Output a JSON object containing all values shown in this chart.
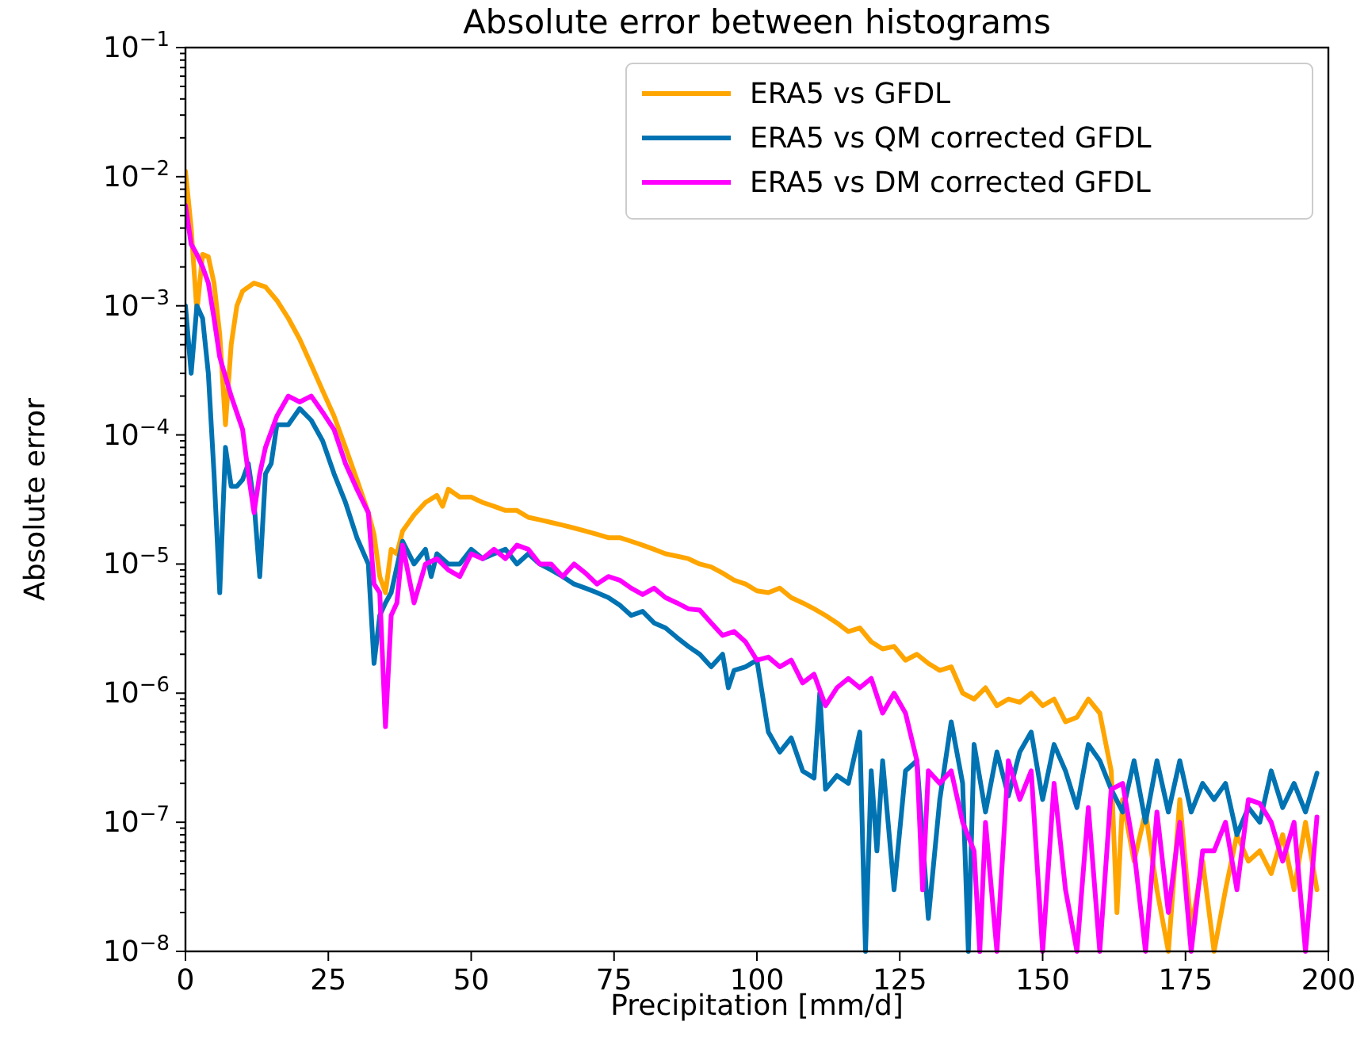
{
  "chart_data": {
    "type": "line",
    "title": "Absolute error between histograms",
    "xlabel": "Precipitation [mm/d]",
    "ylabel": "Absolute error",
    "log": "y",
    "legend": "top right",
    "grid": false,
    "line_style": "solid",
    "marker": "none",
    "xlim": [
      0,
      200
    ],
    "xticks": [
      0,
      25,
      50,
      75,
      100,
      125,
      150,
      175,
      200
    ],
    "ylim": [
      1e-08,
      0.1
    ],
    "yticks": [
      {
        "value": 1e-08,
        "label": "10$^{−8}$"
      },
      {
        "value": 2e-08,
        "label": null
      },
      {
        "value": 3e-08,
        "label": null
      },
      {
        "value": 4e-08,
        "label": null
      },
      {
        "value": 5e-08,
        "label": null
      },
      {
        "value": 6e-08,
        "label": null
      },
      {
        "value": 7e-08,
        "label": null
      },
      {
        "value": 8e-08,
        "label": null
      },
      {
        "value": 9e-08,
        "label": null
      },
      {
        "value": 1e-07,
        "label": "10$^{−7}$"
      },
      {
        "value": 2e-07,
        "label": null
      },
      {
        "value": 3e-07,
        "label": null
      },
      {
        "value": 4e-07,
        "label": null
      },
      {
        "value": 5e-07,
        "label": null
      },
      {
        "value": 6e-07,
        "label": null
      },
      {
        "value": 7e-07,
        "label": null
      },
      {
        "value": 8e-07,
        "label": null
      },
      {
        "value": 9e-07,
        "label": null
      },
      {
        "value": 1e-06,
        "label": "10$^{−6}$"
      },
      {
        "value": 2e-06,
        "label": null
      },
      {
        "value": 3e-06,
        "label": null
      },
      {
        "value": 4e-06,
        "label": null
      },
      {
        "value": 5e-06,
        "label": null
      },
      {
        "value": 6e-06,
        "label": null
      },
      {
        "value": 7e-06,
        "label": null
      },
      {
        "value": 8e-06,
        "label": null
      },
      {
        "value": 9e-06,
        "label": null
      },
      {
        "value": 1e-05,
        "label": "10$^{−5}$"
      },
      {
        "value": 2e-05,
        "label": null
      },
      {
        "value": 3e-05,
        "label": null
      },
      {
        "value": 4e-05,
        "label": null
      },
      {
        "value": 5e-05,
        "label": null
      },
      {
        "value": 6e-05,
        "label": null
      },
      {
        "value": 7e-05,
        "label": null
      },
      {
        "value": 8e-05,
        "label": null
      },
      {
        "value": 9e-05,
        "label": null
      },
      {
        "value": 0.0001,
        "label": "10$^{−4}$"
      },
      {
        "value": 0.0002,
        "label": null
      },
      {
        "value": 0.0003,
        "label": null
      },
      {
        "value": 0.0004,
        "label": null
      },
      {
        "value": 0.0005,
        "label": null
      },
      {
        "value": 0.0006,
        "label": null
      },
      {
        "value": 0.0007,
        "label": null
      },
      {
        "value": 0.0008,
        "label": null
      },
      {
        "value": 0.0009,
        "label": null
      },
      {
        "value": 0.001,
        "label": "10$^{−3}$"
      },
      {
        "value": 0.002,
        "label": null
      },
      {
        "value": 0.003,
        "label": null
      },
      {
        "value": 0.004,
        "label": null
      },
      {
        "value": 0.005,
        "label": null
      },
      {
        "value": 0.006,
        "label": null
      },
      {
        "value": 0.007,
        "label": null
      },
      {
        "value": 0.008,
        "label": null
      },
      {
        "value": 0.009,
        "label": null
      },
      {
        "value": 0.01,
        "label": "10$^{−2}$"
      },
      {
        "value": 0.02,
        "label": null
      },
      {
        "value": 0.03,
        "label": null
      },
      {
        "value": 0.04,
        "label": null
      },
      {
        "value": 0.05,
        "label": null
      },
      {
        "value": 0.06,
        "label": null
      },
      {
        "value": 0.07,
        "label": null
      },
      {
        "value": 0.08,
        "label": null
      },
      {
        "value": 0.09,
        "label": null
      },
      {
        "value": 0.1,
        "label": "10$^{−1}$"
      }
    ],
    "series": [
      {
        "name": "ERA5 vs GFDL",
        "color": "#ffa500",
        "x": [
          0,
          1,
          2,
          3,
          4,
          5,
          6,
          7,
          8,
          9,
          10,
          12,
          14,
          16,
          18,
          20,
          22,
          24,
          26,
          28,
          30,
          32,
          33,
          34,
          35,
          36,
          37,
          38,
          40,
          42,
          44,
          45,
          46,
          48,
          50,
          52,
          54,
          56,
          58,
          60,
          62,
          64,
          66,
          68,
          70,
          72,
          74,
          76,
          78,
          80,
          82,
          84,
          86,
          88,
          90,
          92,
          94,
          96,
          98,
          100,
          102,
          104,
          106,
          108,
          110,
          112,
          114,
          116,
          118,
          120,
          122,
          124,
          126,
          128,
          130,
          132,
          134,
          136,
          138,
          140,
          142,
          144,
          146,
          148,
          150,
          152,
          154,
          156,
          158,
          160,
          162,
          163,
          164,
          166,
          168,
          170,
          172,
          174,
          176,
          178,
          180,
          182,
          184,
          186,
          188,
          190,
          192,
          194,
          196,
          198
        ],
        "values": [
          0.011,
          0.004,
          0.0009,
          0.0025,
          0.0024,
          0.0015,
          0.0006,
          0.00012,
          0.0005,
          0.001,
          0.0013,
          0.0015,
          0.0014,
          0.0011,
          0.0008,
          0.00055,
          0.00035,
          0.00022,
          0.00014,
          8e-05,
          4.5e-05,
          2.5e-05,
          1.7e-05,
          8e-06,
          6e-06,
          1.3e-05,
          1.2e-05,
          1.8e-05,
          2.4e-05,
          3e-05,
          3.4e-05,
          2.8e-05,
          3.8e-05,
          3.3e-05,
          3.3e-05,
          3e-05,
          2.8e-05,
          2.6e-05,
          2.6e-05,
          2.3e-05,
          2.2e-05,
          2.1e-05,
          2e-05,
          1.9e-05,
          1.8e-05,
          1.7e-05,
          1.6e-05,
          1.6e-05,
          1.5e-05,
          1.4e-05,
          1.3e-05,
          1.2e-05,
          1.15e-05,
          1.1e-05,
          1e-05,
          9.5e-06,
          8.5e-06,
          7.5e-06,
          7e-06,
          6.2e-06,
          6e-06,
          6.5e-06,
          5.5e-06,
          5e-06,
          4.5e-06,
          4e-06,
          3.5e-06,
          3e-06,
          3.2e-06,
          2.5e-06,
          2.2e-06,
          2.3e-06,
          1.8e-06,
          2e-06,
          1.7e-06,
          1.5e-06,
          1.6e-06,
          1e-06,
          9e-07,
          1.1e-06,
          8e-07,
          9e-07,
          8.5e-07,
          1e-06,
          8e-07,
          9e-07,
          6e-07,
          6.5e-07,
          9e-07,
          7e-07,
          2.5e-07,
          2e-08,
          1.5e-07,
          5e-08,
          1.2e-07,
          3e-08,
          1e-08,
          1.5e-07,
          1.5e-08,
          5e-08,
          1e-08,
          3e-08,
          8e-08,
          5e-08,
          6e-08,
          4e-08,
          8e-08,
          3e-08,
          1e-07,
          3e-08
        ]
      },
      {
        "name": "ERA5 vs QM corrected GFDL",
        "color": "#0173b2",
        "x": [
          0,
          1,
          2,
          3,
          4,
          5,
          6,
          7,
          8,
          9,
          10,
          11,
          12,
          13,
          14,
          15,
          16,
          18,
          20,
          22,
          24,
          26,
          28,
          30,
          32,
          33,
          34,
          35,
          36,
          38,
          40,
          42,
          43,
          44,
          46,
          48,
          50,
          52,
          54,
          56,
          58,
          60,
          62,
          64,
          66,
          68,
          70,
          72,
          74,
          76,
          78,
          80,
          82,
          84,
          86,
          88,
          90,
          92,
          94,
          95,
          96,
          98,
          100,
          102,
          104,
          106,
          108,
          110,
          111,
          112,
          114,
          116,
          118,
          119,
          120,
          121,
          122,
          124,
          126,
          128,
          130,
          132,
          134,
          136,
          137,
          138,
          140,
          142,
          144,
          146,
          148,
          150,
          152,
          154,
          156,
          158,
          160,
          162,
          164,
          166,
          168,
          170,
          172,
          174,
          176,
          178,
          180,
          182,
          184,
          186,
          188,
          190,
          192,
          194,
          196,
          198
        ],
        "values": [
          0.001,
          0.0003,
          0.001,
          0.0008,
          0.0003,
          5e-05,
          6e-06,
          8e-05,
          4e-05,
          4e-05,
          4.5e-05,
          6e-05,
          3e-05,
          8e-06,
          5e-05,
          6e-05,
          0.00012,
          0.00012,
          0.00016,
          0.00013,
          9e-05,
          5e-05,
          3e-05,
          1.6e-05,
          1e-05,
          1.7e-06,
          4e-06,
          5e-06,
          6e-06,
          1.5e-05,
          1e-05,
          1.3e-05,
          8e-06,
          1.2e-05,
          1e-05,
          1e-05,
          1.3e-05,
          1.1e-05,
          1.2e-05,
          1.3e-05,
          1e-05,
          1.2e-05,
          1e-05,
          9e-06,
          8e-06,
          7e-06,
          6.5e-06,
          6e-06,
          5.5e-06,
          4.8e-06,
          4e-06,
          4.3e-06,
          3.5e-06,
          3.2e-06,
          2.7e-06,
          2.3e-06,
          2e-06,
          1.6e-06,
          2e-06,
          1.1e-06,
          1.5e-06,
          1.6e-06,
          1.8e-06,
          5e-07,
          3.5e-07,
          4.5e-07,
          2.5e-07,
          2.2e-07,
          1e-06,
          1.8e-07,
          2.3e-07,
          2e-07,
          5e-07,
          1e-08,
          2.5e-07,
          6e-08,
          3e-07,
          3e-08,
          2.5e-07,
          3e-07,
          1.8e-08,
          1.5e-07,
          6e-07,
          2e-07,
          1e-08,
          4e-07,
          1.2e-07,
          3.5e-07,
          1.6e-07,
          3.5e-07,
          5e-07,
          1.5e-07,
          4e-07,
          2.5e-07,
          1.3e-07,
          4e-07,
          3e-07,
          1.8e-07,
          1.2e-07,
          3e-07,
          1e-07,
          3e-07,
          1.2e-07,
          3e-07,
          1.2e-07,
          2e-07,
          1.5e-07,
          2e-07,
          8e-08,
          1.3e-07,
          1e-07,
          2.5e-07,
          1.3e-07,
          2e-07,
          1.2e-07,
          2.4e-07
        ]
      },
      {
        "name": "ERA5 vs DM corrected GFDL",
        "color": "#ff00ff",
        "x": [
          0,
          1,
          2,
          3,
          4,
          5,
          6,
          8,
          10,
          11,
          12,
          13,
          14,
          16,
          18,
          20,
          22,
          24,
          26,
          28,
          30,
          32,
          33,
          34,
          35,
          36,
          37,
          38,
          40,
          42,
          44,
          46,
          48,
          50,
          52,
          54,
          56,
          58,
          60,
          62,
          64,
          66,
          68,
          70,
          72,
          74,
          76,
          78,
          80,
          82,
          84,
          86,
          88,
          90,
          92,
          94,
          96,
          98,
          100,
          102,
          104,
          106,
          108,
          110,
          112,
          114,
          116,
          118,
          120,
          122,
          124,
          126,
          128,
          129,
          130,
          132,
          134,
          136,
          138,
          139,
          140,
          142,
          144,
          146,
          148,
          150,
          152,
          154,
          156,
          158,
          160,
          162,
          164,
          166,
          168,
          170,
          172,
          174,
          176,
          178,
          180,
          182,
          184,
          186,
          188,
          190,
          192,
          194,
          196,
          198
        ],
        "values": [
          0.006,
          0.003,
          0.0025,
          0.002,
          0.0015,
          0.0008,
          0.0004,
          0.0002,
          0.00011,
          5e-05,
          2.5e-05,
          5e-05,
          8e-05,
          0.00014,
          0.0002,
          0.00018,
          0.0002,
          0.00015,
          0.00011,
          6e-05,
          3.8e-05,
          2.5e-05,
          7e-06,
          6e-06,
          5.5e-07,
          4e-06,
          5e-06,
          1.4e-05,
          5e-06,
          1e-05,
          1.1e-05,
          9e-06,
          8e-06,
          1.2e-05,
          1.1e-05,
          1.3e-05,
          1.1e-05,
          1.4e-05,
          1.3e-05,
          1e-05,
          1e-05,
          8e-06,
          1e-05,
          8.5e-06,
          7e-06,
          8e-06,
          7.5e-06,
          6.5e-06,
          5.8e-06,
          6.5e-06,
          5.5e-06,
          5e-06,
          4.5e-06,
          4.4e-06,
          3.5e-06,
          2.8e-06,
          3e-06,
          2.5e-06,
          1.8e-06,
          1.9e-06,
          1.6e-06,
          1.8e-06,
          1.2e-06,
          1.4e-06,
          8e-07,
          1.1e-06,
          1.3e-06,
          1.1e-06,
          1.3e-06,
          7e-07,
          1e-06,
          7e-07,
          3e-07,
          3e-08,
          2.5e-07,
          2e-07,
          2.5e-07,
          1e-07,
          6e-08,
          1e-08,
          1e-07,
          1e-08,
          3e-07,
          1.5e-07,
          2.5e-07,
          1e-08,
          2e-07,
          3e-08,
          1e-08,
          1.3e-07,
          1e-08,
          1.8e-07,
          2e-07,
          6e-08,
          1e-08,
          1.2e-07,
          2e-08,
          1e-07,
          1e-08,
          6e-08,
          6e-08,
          1e-07,
          3e-08,
          1.5e-07,
          1.4e-07,
          1e-07,
          5e-08,
          1e-07,
          1e-08,
          1.1e-07
        ]
      }
    ]
  }
}
